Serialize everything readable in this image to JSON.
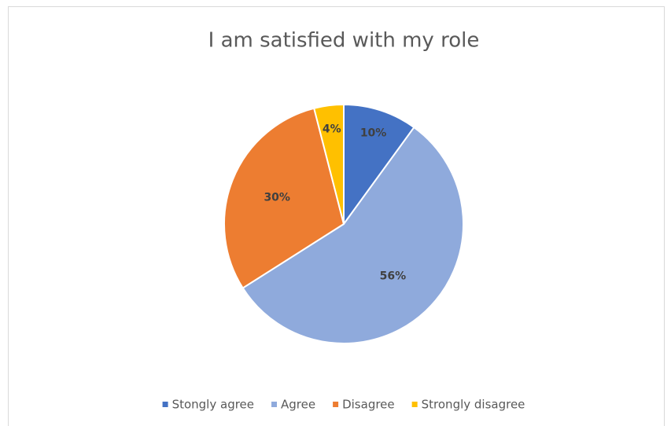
{
  "chart_data": {
    "type": "pie",
    "title": "I am satisfied with my role",
    "categories": [
      "Stongly agree",
      "Agree",
      "Disagree",
      "Strongly disagree"
    ],
    "values": [
      10,
      56,
      30,
      4
    ],
    "value_labels": [
      "10%",
      "56%",
      "30%",
      "4%"
    ],
    "colors": [
      "#4472c4",
      "#8faadc",
      "#ed7d31",
      "#ffc000"
    ],
    "legend": "bottom"
  }
}
